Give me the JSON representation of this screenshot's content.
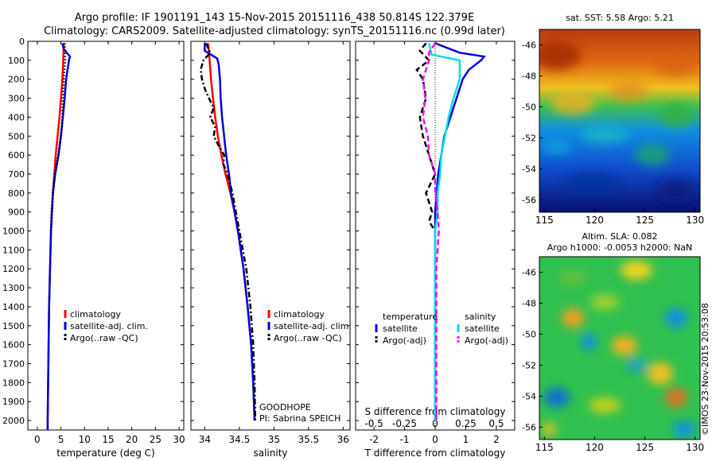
{
  "header": {
    "line1": "Argo profile: IF 1901191_143 15-Nov-2015 20151116_438 50.814S 122.379E",
    "line2": "Climatology: CARS2009. Satellite-adjusted climatology: synTS_20151116.nc (0.99d later)"
  },
  "credit": "©IMOS 23-Nov-2015 20:53:08",
  "colors": {
    "climatology": "#ff0000",
    "satellite": "#0000dd",
    "argo": "#000000",
    "satellite_salinity": "#00e0e0",
    "argo_salinity": "#ff00ff"
  },
  "chart_data": [
    {
      "id": "temperature",
      "type": "line",
      "xlabel": "temperature (deg C)",
      "ylabel": "",
      "xlim": [
        -2,
        31
      ],
      "ylim": [
        2050,
        0
      ],
      "xticks": [
        0,
        5,
        10,
        15,
        20,
        25,
        30
      ],
      "yticks": [
        0,
        100,
        200,
        300,
        400,
        500,
        600,
        700,
        800,
        900,
        1000,
        1100,
        1200,
        1300,
        1400,
        1500,
        1600,
        1700,
        1800,
        1900,
        2000
      ],
      "legend": [
        "climatology",
        "satellite-adj. clim.",
        "Argo(..raw -QC)"
      ],
      "series": [
        {
          "name": "climatology",
          "color": "#ff0000",
          "style": "solid",
          "depth": [
            10,
            100,
            200,
            300,
            400,
            500,
            600,
            700,
            800,
            900,
            1000,
            1200,
            1400,
            1600,
            1800,
            2000,
            2050
          ],
          "values": [
            5.6,
            5.5,
            5.3,
            5.0,
            4.7,
            4.3,
            3.9,
            3.6,
            3.3,
            3.1,
            2.9,
            2.7,
            2.5,
            2.4,
            2.3,
            2.2,
            2.2
          ]
        },
        {
          "name": "satellite-adj. clim.",
          "color": "#0000dd",
          "style": "solid",
          "depth": [
            10,
            40,
            80,
            100,
            200,
            300,
            400,
            500,
            600,
            700,
            800,
            900,
            1000,
            1200,
            1400,
            1600,
            1800,
            2000,
            2050
          ],
          "values": [
            5.3,
            5.6,
            6.9,
            6.7,
            6.1,
            5.8,
            5.4,
            5.0,
            4.5,
            3.8,
            3.3,
            3.1,
            2.9,
            2.7,
            2.5,
            2.4,
            2.3,
            2.2,
            2.2
          ]
        },
        {
          "name": "Argo(..raw -QC)",
          "color": "#000000",
          "style": "dotted",
          "depth": [
            10,
            100,
            200,
            300,
            400,
            500,
            600,
            700,
            800,
            900,
            1000
          ],
          "values": [
            5.8,
            5.9,
            5.6,
            5.4,
            5.3,
            5.0,
            4.4,
            3.7,
            3.3,
            3.0,
            2.9
          ]
        }
      ]
    },
    {
      "id": "salinity",
      "type": "line",
      "xlabel": "salinity",
      "xlim": [
        33.8,
        36.1
      ],
      "ylim": [
        2050,
        0
      ],
      "xticks": [
        34,
        34.5,
        35,
        35.5,
        36
      ],
      "legend": [
        "climatology",
        "satellite-adj. clim.",
        "Argo(..raw -QC)"
      ],
      "annotation": [
        "GOODHOPE",
        "PI: Sabrina SPEICH"
      ],
      "series": [
        {
          "name": "climatology",
          "color": "#ff0000",
          "style": "solid",
          "depth": [
            10,
            100,
            200,
            300,
            400,
            500,
            600,
            700,
            800,
            900,
            1000,
            1200,
            1400,
            1600,
            1800,
            2000
          ],
          "values": [
            34.05,
            34.07,
            34.09,
            34.12,
            34.15,
            34.19,
            34.24,
            34.3,
            34.37,
            34.43,
            34.48,
            34.56,
            34.62,
            34.67,
            34.7,
            34.72
          ]
        },
        {
          "name": "satellite-adj. clim.",
          "color": "#0000dd",
          "style": "solid",
          "depth": [
            10,
            50,
            90,
            120,
            200,
            300,
            400,
            500,
            600,
            700,
            800,
            900,
            1000,
            1200,
            1400,
            1600,
            1800,
            2000
          ],
          "values": [
            34.0,
            34.0,
            34.18,
            34.2,
            34.22,
            34.23,
            34.25,
            34.28,
            34.31,
            34.35,
            34.38,
            34.43,
            34.48,
            34.56,
            34.62,
            34.67,
            34.7,
            34.72
          ]
        },
        {
          "name": "Argo(..raw -QC)",
          "color": "#000000",
          "style": "dashdot",
          "depth": [
            10,
            60,
            100,
            150,
            200,
            250,
            300,
            350,
            400,
            450,
            500,
            550,
            600,
            650,
            700,
            800,
            900,
            1000,
            1200,
            1400,
            1600,
            1800,
            2000
          ],
          "values": [
            34.02,
            34.08,
            33.98,
            33.94,
            33.96,
            34.0,
            34.06,
            34.13,
            34.08,
            34.15,
            34.13,
            34.2,
            34.28,
            34.27,
            34.33,
            34.4,
            34.45,
            34.5,
            34.6,
            34.66,
            34.7,
            34.72,
            34.73
          ]
        }
      ]
    },
    {
      "id": "differences",
      "type": "line",
      "xlabel": "T difference from climatology",
      "xlabel_top": "S difference from climatology",
      "xlim": [
        -2.6,
        2.6
      ],
      "ylim": [
        2050,
        0
      ],
      "xticks": [
        -2,
        -1,
        0,
        1,
        2
      ],
      "xticks_top": [
        -0.5,
        -0.25,
        0,
        0.25,
        0.5
      ],
      "legend_headers": [
        "temperature",
        "salinity"
      ],
      "legend": [
        "satellite",
        "Argo(-adj)",
        "satellite",
        "Argo(-adj)"
      ],
      "series": [
        {
          "name": "satellite",
          "variable": "temperature",
          "color": "#0000dd",
          "style": "solid",
          "depth": [
            10,
            60,
            80,
            100,
            150,
            200,
            300,
            400,
            500,
            600,
            700,
            800,
            900,
            1000,
            1200,
            1500,
            1800,
            2000
          ],
          "values": [
            0.0,
            0.8,
            1.6,
            1.5,
            1.1,
            0.9,
            0.7,
            0.5,
            0.3,
            0.2,
            0.1,
            0.05,
            0.0,
            0.0,
            0.0,
            0.0,
            0.0,
            0.0
          ]
        },
        {
          "name": "Argo(-adj)",
          "variable": "temperature",
          "color": "#000000",
          "style": "dashed",
          "depth": [
            10,
            50,
            100,
            150,
            200,
            300,
            400,
            500,
            600,
            700,
            800,
            900,
            950,
            1000
          ],
          "values": [
            -0.3,
            -0.5,
            -0.2,
            -0.6,
            -0.4,
            -0.3,
            -0.5,
            -0.4,
            -0.2,
            0.0,
            -0.3,
            -0.1,
            -0.2,
            0.0
          ]
        },
        {
          "name": "satellite",
          "variable": "salinity",
          "color": "#00e0e0",
          "style": "solid",
          "depth": [
            10,
            70,
            100,
            200,
            300,
            400,
            500,
            600,
            700,
            800,
            900,
            1000,
            1200,
            1500,
            1800,
            2000
          ],
          "values": [
            -0.05,
            -0.03,
            0.2,
            0.2,
            0.15,
            0.11,
            0.08,
            0.05,
            0.04,
            0.02,
            0.02,
            0.0,
            0.0,
            0.0,
            0.0,
            0.0
          ]
        },
        {
          "name": "Argo(-adj)",
          "variable": "salinity",
          "color": "#ff00ff",
          "style": "dashed",
          "depth": [
            10,
            60,
            100,
            200,
            300,
            400,
            500,
            600,
            700,
            800,
            900,
            1000,
            1100,
            1200,
            1500,
            1800,
            2000
          ],
          "values": [
            0.0,
            -0.05,
            -0.05,
            -0.1,
            -0.08,
            -0.1,
            -0.06,
            -0.05,
            0.0,
            0.0,
            0.02,
            0.03,
            0.02,
            0.01,
            0.01,
            0.01,
            0.01
          ]
        }
      ]
    },
    {
      "id": "sst-map",
      "type": "heatmap",
      "title": "sat. SST: 5.58 Argo: 5.21",
      "xlim": [
        114.5,
        130.5
      ],
      "ylim": [
        -56.8,
        -45
      ],
      "xticks": [
        115,
        120,
        125,
        130
      ],
      "yticks": [
        -46,
        -48,
        -50,
        -52,
        -54,
        -56
      ]
    },
    {
      "id": "sla-map",
      "type": "heatmap",
      "title": [
        "Altim. SLA: 0.082",
        "Argo h1000: -0.0053 h2000: NaN"
      ],
      "xlim": [
        114.5,
        130.5
      ],
      "ylim": [
        -56.8,
        -45
      ],
      "xticks": [
        115,
        120,
        125,
        130
      ],
      "yticks": [
        -46,
        -48,
        -50,
        -52,
        -54,
        -56
      ]
    }
  ]
}
